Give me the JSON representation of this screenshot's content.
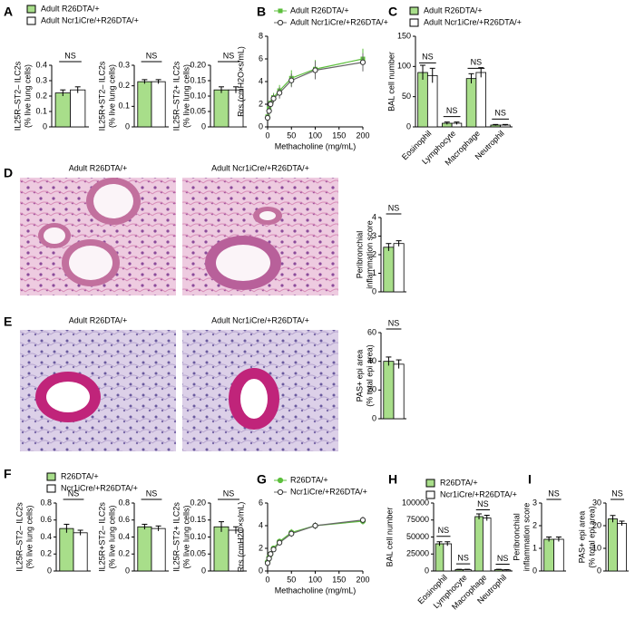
{
  "chart_data": [
    {
      "type": "bar",
      "panel": "A",
      "ylabel": [
        "IL25R–ST2– ILC2s",
        "(% live lung cells)"
      ],
      "series": [
        {
          "name": "Adult R26DTA/+",
          "color": "#a8de8a",
          "values": [
            0.22
          ],
          "errors": [
            0.02
          ]
        },
        {
          "name": "Adult Ncr1iCre/+R26DTA/+",
          "color": "#ffffff",
          "values": [
            0.24
          ],
          "errors": [
            0.02
          ]
        }
      ],
      "ylim": [
        0,
        0.4
      ],
      "yticks": [
        0,
        0.1,
        0.2,
        0.3,
        0.4
      ],
      "annotations": [
        "NS"
      ]
    },
    {
      "type": "bar",
      "ylabel": [
        "IL25R+ST2– ILC2s",
        "(% live lung cells)"
      ],
      "series": [
        {
          "color": "#a8de8a",
          "values": [
            0.22
          ],
          "errors": [
            0.01
          ]
        },
        {
          "color": "#ffffff",
          "values": [
            0.22
          ],
          "errors": [
            0.01
          ]
        }
      ],
      "ylim": [
        0,
        0.3
      ],
      "yticks": [
        0,
        0.1,
        0.2,
        0.3
      ],
      "annotations": [
        "NS"
      ]
    },
    {
      "type": "bar",
      "ylabel": [
        "IL25R–ST2+ ILC2s",
        "(% live lung cells)"
      ],
      "series": [
        {
          "color": "#a8de8a",
          "values": [
            0.12
          ],
          "errors": [
            0.01
          ]
        },
        {
          "color": "#ffffff",
          "values": [
            0.12
          ],
          "errors": [
            0.01
          ]
        }
      ],
      "ylim": [
        0,
        0.2
      ],
      "yticks": [
        0,
        {
          "value": 0.05,
          "label": "0.05"
        },
        {
          "value": 0.1,
          "label": "0.10"
        },
        {
          "value": 0.15,
          "label": "0.15"
        },
        {
          "value": 0.2,
          "label": "0.20"
        }
      ],
      "annotations": [
        "NS"
      ]
    },
    {
      "type": "line",
      "panel": "B",
      "ylabel": [
        "Rrs (cmH2O×s/mL)"
      ],
      "xlabel": "Methacholine (mg/mL)",
      "x": [
        0,
        3.125,
        6.25,
        12.5,
        25,
        50,
        100,
        200
      ],
      "series": [
        {
          "name": "Adult R26DTA/+",
          "color": "#5cbf3c",
          "marker": "square",
          "values": [
            0.9,
            1.6,
            2.1,
            2.6,
            3.2,
            4.3,
            5.1,
            6.0
          ],
          "errors": [
            0.2,
            0.3,
            0.3,
            0.4,
            0.5,
            0.7,
            0.8,
            0.9
          ]
        },
        {
          "name": "Adult Ncr1iCre/+R26DTA/+",
          "color": "#666666",
          "marker": "circle",
          "values": [
            0.8,
            1.4,
            2.0,
            2.5,
            3.0,
            4.1,
            5.0,
            5.7
          ],
          "errors": [
            0.2,
            0.3,
            0.3,
            0.4,
            0.5,
            0.6,
            0.8,
            0.8
          ]
        }
      ],
      "xlim": [
        0,
        200
      ],
      "xticks": [
        0,
        50,
        100,
        150,
        200
      ],
      "ylim": [
        0,
        8
      ],
      "yticks": [
        0,
        2,
        4,
        6,
        8
      ]
    },
    {
      "type": "bar",
      "panel": "C",
      "ylabel": [
        "BAL cell number"
      ],
      "categories": [
        "Eosinophil",
        "Lymphocyte",
        "Macrophage",
        "Neutrophil"
      ],
      "series": [
        {
          "name": "Adult R26DTA/+",
          "color": "#a8de8a",
          "values": [
            90,
            6,
            80,
            3
          ],
          "errors": [
            12,
            2,
            8,
            1
          ]
        },
        {
          "name": "Adult Ncr1iCre/+R26DTA/+",
          "color": "#ffffff",
          "values": [
            85,
            6,
            90,
            3
          ],
          "errors": [
            12,
            2,
            8,
            1
          ]
        }
      ],
      "ylim": [
        0,
        150
      ],
      "yticks": [
        0,
        50,
        100,
        150
      ],
      "annotations": [
        "NS",
        "NS",
        "NS",
        "NS"
      ]
    },
    {
      "type": "bar",
      "ylabel": [
        "Peribronchial",
        "inflammation score"
      ],
      "series": [
        {
          "color": "#a8de8a",
          "values": [
            2.4
          ],
          "errors": [
            0.2
          ]
        },
        {
          "color": "#ffffff",
          "values": [
            2.6
          ],
          "errors": [
            0.15
          ]
        }
      ],
      "ylim": [
        0,
        4
      ],
      "yticks": [
        0,
        1,
        2,
        3,
        4
      ],
      "annotations": [
        "NS"
      ]
    },
    {
      "type": "bar",
      "ylabel": [
        "PAS+ epi area",
        "(% total epi area)"
      ],
      "series": [
        {
          "color": "#a8de8a",
          "values": [
            40
          ],
          "errors": [
            3
          ]
        },
        {
          "color": "#ffffff",
          "values": [
            38
          ],
          "errors": [
            3
          ]
        }
      ],
      "ylim": [
        0,
        60
      ],
      "yticks": [
        0,
        20,
        40,
        60
      ],
      "annotations": [
        "NS"
      ]
    },
    {
      "type": "bar",
      "panel": "F",
      "ylabel": [
        "IL25R–ST2– ILC2s",
        "(% live lung cells)"
      ],
      "series": [
        {
          "name": "R26DTA/+",
          "color": "#a8de8a",
          "values": [
            0.5
          ],
          "errors": [
            0.05
          ]
        },
        {
          "name": "Ncr1iCre/+R26DTA/+",
          "color": "#ffffff",
          "values": [
            0.45
          ],
          "errors": [
            0.03
          ]
        }
      ],
      "ylim": [
        0,
        0.8
      ],
      "yticks": [
        0,
        0.2,
        0.4,
        0.6,
        0.8
      ],
      "annotations": [
        "NS"
      ]
    },
    {
      "type": "bar",
      "ylabel": [
        "IL25R+ST2– ILC2s",
        "(% live lung cells)"
      ],
      "series": [
        {
          "color": "#a8de8a",
          "values": [
            0.52
          ],
          "errors": [
            0.03
          ]
        },
        {
          "color": "#ffffff",
          "values": [
            0.5
          ],
          "errors": [
            0.03
          ]
        }
      ],
      "ylim": [
        0,
        0.8
      ],
      "yticks": [
        0,
        0.2,
        0.4,
        0.6,
        0.8
      ],
      "annotations": [
        "NS"
      ]
    },
    {
      "type": "bar",
      "ylabel": [
        "IL25R–ST2+ ILC2s",
        "(% live lung cells)"
      ],
      "series": [
        {
          "color": "#a8de8a",
          "values": [
            0.13
          ],
          "errors": [
            0.015
          ]
        },
        {
          "color": "#ffffff",
          "values": [
            0.12
          ],
          "errors": [
            0.01
          ]
        }
      ],
      "ylim": [
        0,
        0.2
      ],
      "yticks": [
        0,
        {
          "value": 0.05,
          "label": "0.05"
        },
        {
          "value": 0.1,
          "label": "0.10"
        },
        {
          "value": 0.15,
          "label": "0.15"
        },
        {
          "value": 0.2,
          "label": "0.20"
        }
      ],
      "annotations": [
        "NS"
      ]
    },
    {
      "type": "line",
      "panel": "G",
      "ylabel": [
        "Rrs (cmH2O×s/mL)"
      ],
      "xlabel": "Methacholine (mg/mL)",
      "x": [
        0,
        3.125,
        6.25,
        12.5,
        25,
        50,
        100,
        200
      ],
      "series": [
        {
          "name": "R26DTA/+",
          "color": "#5cbf3c",
          "marker": "circle",
          "values": [
            0.8,
            1.2,
            1.5,
            2.0,
            2.6,
            3.4,
            4.0,
            4.4
          ],
          "errors": [
            0.1,
            0.15,
            0.2,
            0.2,
            0.25,
            0.3,
            0.3,
            0.3
          ]
        },
        {
          "name": "Ncr1iCre/+R26DTA/+",
          "color": "#666666",
          "marker": "circle",
          "values": [
            0.7,
            1.1,
            1.5,
            1.9,
            2.5,
            3.3,
            4.0,
            4.5
          ],
          "errors": [
            0.1,
            0.15,
            0.2,
            0.2,
            0.25,
            0.3,
            0.3,
            0.3
          ]
        }
      ],
      "xlim": [
        0,
        200
      ],
      "xticks": [
        0,
        50,
        100,
        150,
        200
      ],
      "ylim": [
        0,
        6
      ],
      "yticks": [
        0,
        2,
        4,
        6
      ]
    },
    {
      "type": "bar",
      "panel": "H",
      "ylabel": [
        "BAL cell number"
      ],
      "categories": [
        "Eosinophil",
        "Lymphocyte",
        "Macrophage",
        "Neutrophil"
      ],
      "series": [
        {
          "name": "R26DTA/+",
          "color": "#a8de8a",
          "values": [
            40000,
            2000,
            80000,
            2000
          ],
          "errors": [
            3000,
            500,
            4000,
            500
          ]
        },
        {
          "name": "Ncr1iCre/+R26DTA/+",
          "color": "#ffffff",
          "values": [
            40000,
            2000,
            78000,
            1500
          ],
          "errors": [
            3000,
            500,
            4000,
            500
          ]
        }
      ],
      "ylim": [
        0,
        100000
      ],
      "yticks": [
        0,
        25000,
        50000,
        75000,
        100000
      ],
      "annotations": [
        "NS",
        "NS",
        "NS",
        "NS"
      ]
    },
    {
      "type": "bar",
      "panel": "I",
      "ylabel": [
        "Peribronchial",
        "inflammation score"
      ],
      "series": [
        {
          "color": "#a8de8a",
          "values": [
            1.4
          ],
          "errors": [
            0.1
          ]
        },
        {
          "color": "#ffffff",
          "values": [
            1.4
          ],
          "errors": [
            0.1
          ]
        }
      ],
      "ylim": [
        0,
        3
      ],
      "yticks": [
        0,
        1,
        2,
        3
      ],
      "annotations": [
        "NS"
      ]
    },
    {
      "type": "bar",
      "ylabel": [
        "PAS+ epi area",
        "(% total epi area)"
      ],
      "series": [
        {
          "color": "#a8de8a",
          "values": [
            23
          ],
          "errors": [
            1.5
          ]
        },
        {
          "color": "#ffffff",
          "values": [
            21
          ],
          "errors": [
            1
          ]
        }
      ],
      "ylim": [
        0,
        30
      ],
      "yticks": [
        0,
        10,
        20,
        30
      ],
      "annotations": [
        "NS"
      ]
    }
  ],
  "histology": [
    {
      "panel": "D",
      "labels": [
        "Adult R26DTA/+",
        "Adult Ncr1iCre/+R26DTA/+"
      ]
    },
    {
      "panel": "E",
      "labels": [
        "Adult R26DTA/+",
        "Adult Ncr1iCre/+R26DTA/+"
      ]
    }
  ]
}
